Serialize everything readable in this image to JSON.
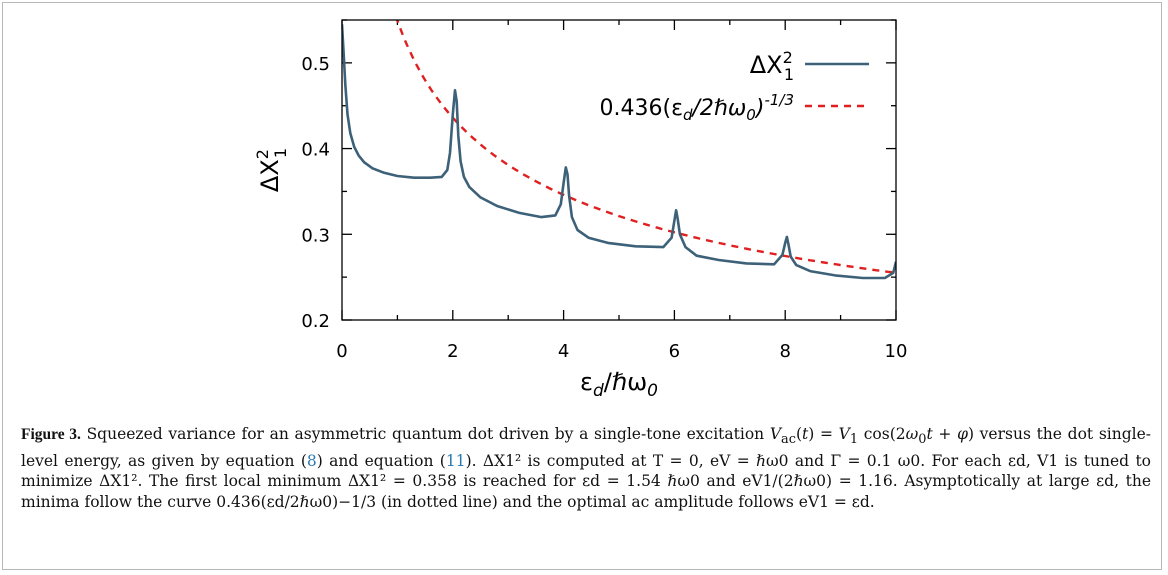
{
  "chart_data": {
    "type": "line",
    "xlabel": "εd/ℏω0",
    "ylabel": "ΔX1²",
    "xlim": [
      0,
      10
    ],
    "ylim": [
      0.2,
      0.55
    ],
    "x_ticks": [
      "0",
      "2",
      "4",
      "6",
      "8",
      "10"
    ],
    "y_ticks": [
      "0.2",
      "0.3",
      "0.4",
      "0.5"
    ],
    "legend_position": "top-right",
    "series": [
      {
        "name": "ΔX1²",
        "color": "#3d6178",
        "style": "solid",
        "x": [
          0.0,
          0.03,
          0.06,
          0.1,
          0.15,
          0.22,
          0.3,
          0.4,
          0.55,
          0.75,
          1.0,
          1.3,
          1.6,
          1.8,
          1.9,
          1.95,
          2.0,
          2.04,
          2.07,
          2.1,
          2.14,
          2.2,
          2.3,
          2.5,
          2.8,
          3.2,
          3.6,
          3.85,
          3.95,
          4.0,
          4.04,
          4.07,
          4.1,
          4.15,
          4.25,
          4.45,
          4.8,
          5.3,
          5.8,
          5.95,
          6.0,
          6.03,
          6.06,
          6.1,
          6.2,
          6.4,
          6.8,
          7.3,
          7.8,
          7.95,
          8.0,
          8.03,
          8.06,
          8.1,
          8.2,
          8.45,
          8.9,
          9.4,
          9.8,
          9.95,
          10.0
        ],
        "y": [
          0.545,
          0.51,
          0.475,
          0.44,
          0.418,
          0.402,
          0.392,
          0.384,
          0.377,
          0.372,
          0.368,
          0.366,
          0.366,
          0.367,
          0.375,
          0.395,
          0.44,
          0.468,
          0.455,
          0.415,
          0.385,
          0.367,
          0.355,
          0.343,
          0.333,
          0.325,
          0.32,
          0.322,
          0.335,
          0.36,
          0.378,
          0.37,
          0.345,
          0.32,
          0.305,
          0.296,
          0.29,
          0.286,
          0.285,
          0.296,
          0.316,
          0.328,
          0.318,
          0.3,
          0.285,
          0.275,
          0.27,
          0.266,
          0.265,
          0.276,
          0.29,
          0.297,
          0.288,
          0.274,
          0.264,
          0.257,
          0.252,
          0.249,
          0.249,
          0.255,
          0.268
        ]
      },
      {
        "name": "0.436(εd/2ℏω0)^-1/3",
        "color": "#e02020",
        "style": "dashed",
        "function": "0.436*(x/2)^(-1/3)",
        "x": [
          1.0,
          1.5,
          2.0,
          3.0,
          4.0,
          5.0,
          6.0,
          7.0,
          8.0,
          9.0,
          10.0
        ],
        "y": [
          0.549,
          0.48,
          0.436,
          0.381,
          0.346,
          0.321,
          0.302,
          0.287,
          0.275,
          0.264,
          0.255
        ]
      }
    ]
  },
  "caption": {
    "label": "Figure 3.",
    "lines": [
      "Squeezed variance for an asymmetric quantum dot driven by a single-tone excitation",
      "versus the",
      "dot single-level energy, as given by equation (",
      "8",
      ") and equation (",
      "11",
      "). ΔX1² is computed at T = 0, eV = ℏω0 and Γ = 0.1 ω0. For each",
      "εd, V1 is tuned to minimize ΔX1². The first local minimum ΔX1² = 0.358 is reached for εd = 1.54 ℏω0 and eV1/(2ℏω0) = 1.16.",
      "Asymptotically at large εd, the minima follow the curve 0.436(εd/2ℏω0)−1/3 (in dotted line) and the optimal ac amplitude follows",
      "eV1 = εd."
    ]
  }
}
